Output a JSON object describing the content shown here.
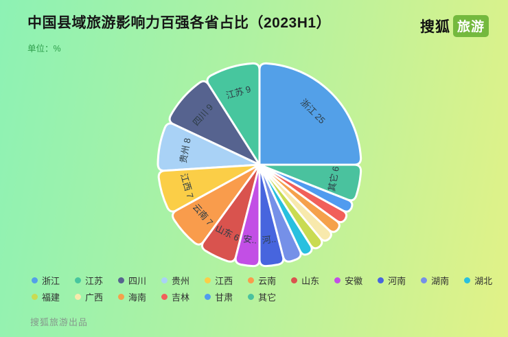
{
  "header": {
    "unit_label": "单位：%",
    "logo_text": "搜狐",
    "logo_badge": "旅游"
  },
  "footer": {
    "credit": "搜狐旅游出品"
  },
  "colors": {
    "background_start": "#8DF2B4",
    "background_end": "#E2F287",
    "logo_badge_green": "#74B93E",
    "unit_text_green": "#2E9D4B",
    "title_text": "#161616",
    "slice_border": "#FFFFFF",
    "slice_label_text": "#2E3D46",
    "legend_text": "#2F2F2F",
    "footer_text": "#86988C"
  },
  "chart_data": {
    "type": "pie",
    "title": "中国县域旅游影响力百强各省占比（2023H1）",
    "unit": "%",
    "total": 100,
    "start_angle_deg": 0,
    "direction": "counterclockwise",
    "legend_position": "bottom",
    "series": [
      {
        "name": "浙江",
        "value": 25,
        "color": "#53A0E8",
        "slice_label": "浙江 25"
      },
      {
        "name": "江苏",
        "value": 9,
        "color": "#47C69E",
        "slice_label": "江苏 9"
      },
      {
        "name": "四川",
        "value": 9,
        "color": "#56638F",
        "slice_label": "四川 9"
      },
      {
        "name": "贵州",
        "value": 8,
        "color": "#A9D2F6",
        "slice_label": "贵州 8"
      },
      {
        "name": "江西",
        "value": 7,
        "color": "#FBCE47",
        "slice_label": "江西 7"
      },
      {
        "name": "云南",
        "value": 7,
        "color": "#F99C4C",
        "slice_label": "云南 7"
      },
      {
        "name": "山东",
        "value": 6,
        "color": "#D9534E",
        "slice_label": "山东 6"
      },
      {
        "name": "安徽",
        "value": 4,
        "color": "#C24FE5",
        "slice_label": "安.."
      },
      {
        "name": "河南",
        "value": 4,
        "color": "#4765DE",
        "slice_label": "河.."
      },
      {
        "name": "湖南",
        "value": 3,
        "color": "#7590E8",
        "slice_label": ""
      },
      {
        "name": "湖北",
        "value": 2,
        "color": "#28C0DF",
        "slice_label": ""
      },
      {
        "name": "福建",
        "value": 2,
        "color": "#C9DB52",
        "slice_label": ""
      },
      {
        "name": "广西",
        "value": 2,
        "color": "#F8E9AC",
        "slice_label": ""
      },
      {
        "name": "海南",
        "value": 2,
        "color": "#F5A14B",
        "slice_label": ""
      },
      {
        "name": "吉林",
        "value": 2,
        "color": "#F15F5A",
        "slice_label": ""
      },
      {
        "name": "甘肃",
        "value": 2,
        "color": "#509BEF",
        "slice_label": ""
      },
      {
        "name": "其它",
        "value": 6,
        "color": "#4AC29E",
        "slice_label": "其它 6"
      }
    ],
    "legend_rows": [
      [
        "浙江",
        "江苏",
        "四川",
        "贵州",
        "江西",
        "云南",
        "山东",
        "安徽",
        "河南",
        "湖南",
        "湖北"
      ],
      [
        "福建",
        "广西",
        "海南",
        "吉林",
        "甘肃",
        "其它"
      ]
    ]
  }
}
